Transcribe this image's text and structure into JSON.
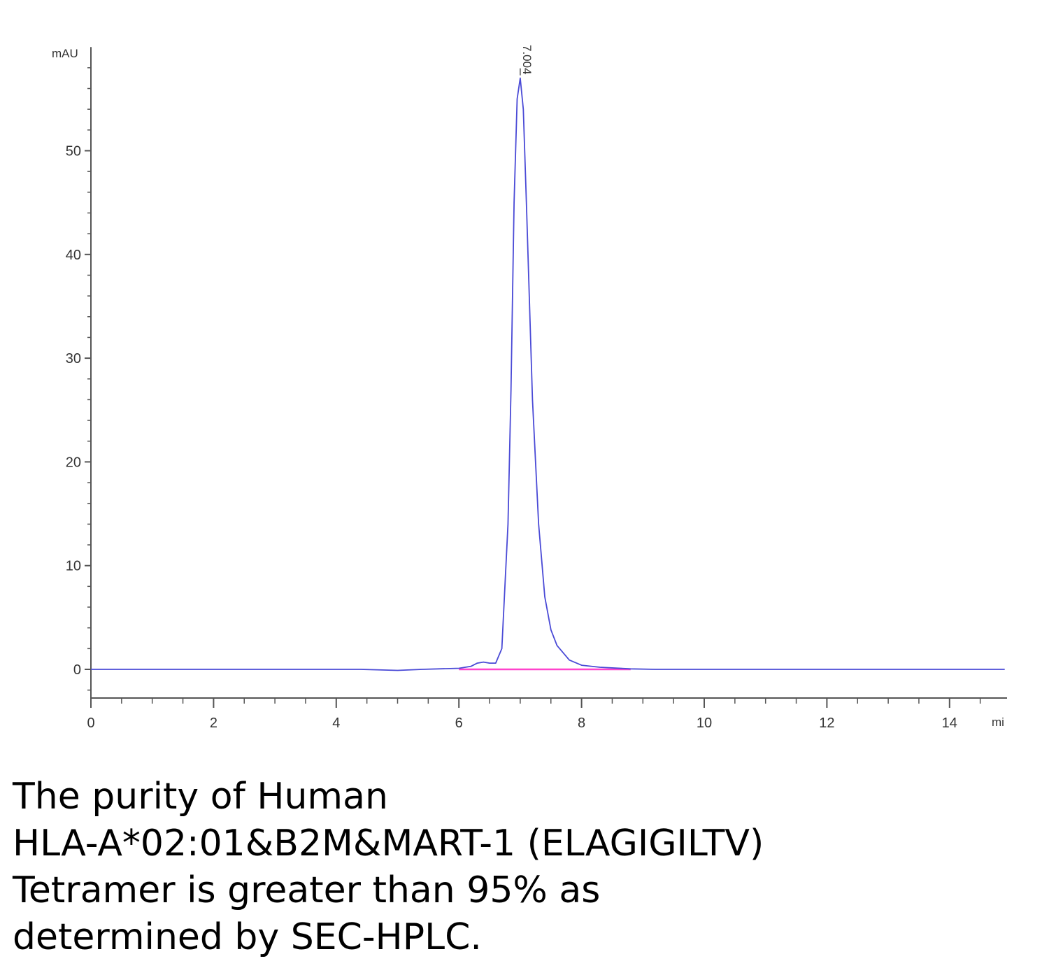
{
  "chart_data": {
    "type": "line",
    "ylabel": "mAU",
    "xlabel": "mi",
    "xlim": [
      0,
      15
    ],
    "ylim": [
      -3,
      60
    ],
    "xticks": [
      0,
      2,
      4,
      6,
      8,
      10,
      12,
      14
    ],
    "yticks": [
      0,
      10,
      20,
      30,
      40,
      50
    ],
    "grid": false,
    "colors": {
      "trace": "#4a4ad6",
      "baseline": "#ff44cc",
      "axis": "#555555"
    },
    "peak_label": "7.004",
    "series": [
      {
        "x": [
          0,
          0.5,
          1,
          2,
          3,
          4,
          4.4,
          5,
          5.4,
          6.0,
          6.2,
          6.3,
          6.4,
          6.5,
          6.6,
          6.7,
          6.8,
          6.85,
          6.9,
          6.95,
          7.0,
          7.05,
          7.1,
          7.2,
          7.3,
          7.4,
          7.5,
          7.6,
          7.8,
          8.0,
          8.3,
          8.8,
          9.2,
          10,
          12,
          14,
          14.9
        ],
        "y": [
          0,
          0,
          0,
          0,
          0,
          0,
          0,
          -0.1,
          0,
          0.1,
          0.3,
          0.6,
          0.7,
          0.6,
          0.6,
          2.0,
          14.0,
          27.0,
          45.0,
          55.0,
          57.0,
          54.0,
          45.0,
          26.0,
          14.0,
          7.0,
          3.8,
          2.3,
          0.9,
          0.4,
          0.2,
          0.05,
          0,
          0,
          0,
          0,
          0
        ]
      }
    ],
    "integration_baseline": {
      "x": [
        6.0,
        8.8
      ],
      "y": [
        0,
        0
      ]
    }
  },
  "caption": {
    "lines": [
      "The purity of Human",
      "HLA-A*02:01&B2M&MART-1 (ELAGIGILTV)",
      "Tetramer is greater than 95% as",
      "determined by SEC-HPLC."
    ]
  }
}
